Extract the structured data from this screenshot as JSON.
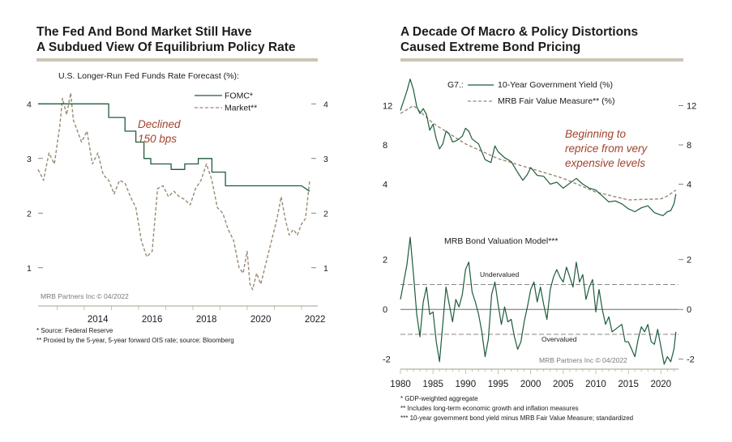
{
  "left_panel": {
    "title_line1": "The Fed And Bond Market Still Have",
    "title_line2": "A Subdued View Of Equilibrium Policy Rate",
    "subtitle": "U.S. Longer-Run Fed Funds Rate Forecast (%):",
    "watermark": "MRB Partners Inc © 04/2022",
    "annotation": [
      "Declined",
      "150 bps"
    ],
    "footnotes": [
      "*  Source: Federal Reserve",
      "** Proxied by the 5-year, 5-year forward OIS rate; source: Bloomberg"
    ]
  },
  "right_panel": {
    "title_line1": "A Decade Of Macro & Policy Distortions",
    "title_line2": "Caused Extreme Bond Pricing",
    "legend_prefix": "G7.:",
    "annotation": [
      "Beginning to",
      "reprice from very",
      "expensive levels"
    ],
    "bottom_subtitle": "MRB Bond Valuation Model***",
    "undervalued_label": "Undervalued",
    "overvalued_label": "Overvalued",
    "watermark": "MRB Partners Inc © 04/2022",
    "footnotes": [
      "*   GDP-weighted aggregate",
      "**  Includes long-term economic growth and inflation measures",
      "*** 10-year government bond yield minus MRB Fair Value Measure; standardized"
    ]
  },
  "colors": {
    "green": "#1f5c3a",
    "tan": "#9a8a72",
    "red": "#a0432d",
    "rule": "#cdc5b4",
    "axis": "#b9b1a2"
  },
  "chart_data": [
    {
      "type": "line",
      "title": "U.S. Longer-Run Fed Funds Rate Forecast (%):",
      "x_ticks": [
        "2014",
        "2016",
        "2018",
        "2020",
        "2022"
      ],
      "y_ticks": [
        "1",
        "2",
        "3",
        "4"
      ],
      "xlim": [
        2012.3,
        2022.6
      ],
      "ylim": [
        0.3,
        4.3
      ],
      "series": [
        {
          "name": "FOMC*",
          "style": "solid",
          "color": "#1f5c3a",
          "x": [
            2012.3,
            2014.9,
            2014.9,
            2015.5,
            2015.5,
            2015.9,
            2015.9,
            2016.2,
            2016.2,
            2016.45,
            2016.45,
            2016.7,
            2016.7,
            2017.2,
            2017.2,
            2017.7,
            2017.7,
            2018.2,
            2018.2,
            2018.7,
            2018.7,
            2019.2,
            2019.2,
            2022.0,
            2022.0,
            2022.3
          ],
          "y": [
            4.0,
            4.0,
            3.75,
            3.75,
            3.5,
            3.5,
            3.3,
            3.3,
            3.0,
            3.0,
            2.9,
            2.9,
            2.9,
            2.9,
            2.8,
            2.8,
            2.9,
            2.9,
            3.0,
            3.0,
            2.75,
            2.75,
            2.5,
            2.5,
            2.5,
            2.4
          ]
        },
        {
          "name": "Market**",
          "style": "dashed",
          "color": "#9a8a72",
          "x": [
            2012.3,
            2012.5,
            2012.7,
            2012.9,
            2013.1,
            2013.2,
            2013.35,
            2013.5,
            2013.6,
            2013.75,
            2013.9,
            2014.1,
            2014.3,
            2014.5,
            2014.7,
            2014.9,
            2015.1,
            2015.3,
            2015.5,
            2015.7,
            2015.9,
            2016.1,
            2016.3,
            2016.5,
            2016.7,
            2016.9,
            2017.1,
            2017.3,
            2017.5,
            2017.7,
            2017.9,
            2018.1,
            2018.3,
            2018.5,
            2018.7,
            2018.9,
            2019.1,
            2019.3,
            2019.5,
            2019.7,
            2019.85,
            2020.0,
            2020.1,
            2020.2,
            2020.35,
            2020.5,
            2020.65,
            2020.8,
            2020.95,
            2021.1,
            2021.25,
            2021.4,
            2021.55,
            2021.7,
            2021.85,
            2022.0,
            2022.15,
            2022.3
          ],
          "y": [
            2.8,
            2.6,
            3.1,
            2.9,
            3.6,
            4.1,
            3.8,
            4.2,
            3.7,
            3.5,
            3.3,
            3.5,
            2.9,
            3.1,
            2.7,
            2.6,
            2.35,
            2.6,
            2.55,
            2.3,
            2.1,
            1.5,
            1.2,
            1.3,
            2.45,
            2.5,
            2.3,
            2.4,
            2.3,
            2.25,
            2.15,
            2.45,
            2.6,
            2.9,
            2.6,
            2.1,
            2.0,
            1.7,
            1.5,
            1.0,
            0.9,
            1.3,
            0.7,
            0.6,
            0.9,
            0.7,
            1.0,
            1.3,
            1.6,
            1.9,
            2.3,
            1.9,
            1.6,
            1.7,
            1.6,
            1.8,
            1.9,
            2.6
          ]
        }
      ],
      "annotation": "Declined 150 bps",
      "watermark": "MRB Partners Inc © 04/2022"
    },
    {
      "type": "line",
      "title": "G7.:",
      "x_ticks": [
        "1980",
        "1985",
        "1990",
        "1995",
        "2000",
        "2005",
        "2010",
        "2015",
        "2020"
      ],
      "y_ticks": [
        "4",
        "8",
        "12"
      ],
      "xlim": [
        1980,
        2022.7
      ],
      "ylim": [
        0.5,
        15.5
      ],
      "series": [
        {
          "name": "10-Year Government Yield (%)",
          "style": "solid",
          "color": "#1f5c3a",
          "x": [
            1980.0,
            1980.5,
            1981.0,
            1981.5,
            1982.0,
            1982.5,
            1983.0,
            1983.5,
            1984.0,
            1984.5,
            1985.0,
            1985.5,
            1986.0,
            1986.5,
            1987.0,
            1987.5,
            1988.0,
            1988.5,
            1989.0,
            1989.5,
            1990.0,
            1990.5,
            1991.0,
            1992.0,
            1993.0,
            1993.9,
            1994.5,
            1995.0,
            1996.0,
            1997.0,
            1998.0,
            1998.8,
            1999.5,
            2000.0,
            2001.0,
            2002.0,
            2003.0,
            2004.0,
            2005.0,
            2006.0,
            2007.0,
            2008.0,
            2009.0,
            2010.0,
            2011.0,
            2012.0,
            2013.0,
            2014.0,
            2015.0,
            2016.0,
            2017.0,
            2018.0,
            2019.0,
            2019.8,
            2020.3,
            2021.0,
            2021.5,
            2022.0,
            2022.3
          ],
          "y": [
            11.5,
            12.5,
            13.5,
            14.7,
            13.6,
            11.9,
            11.2,
            11.7,
            11.1,
            9.5,
            10.1,
            8.6,
            7.6,
            8.1,
            9.4,
            9.1,
            8.3,
            8.4,
            8.6,
            8.9,
            9.7,
            9.4,
            8.6,
            8.1,
            6.5,
            6.2,
            7.9,
            7.3,
            6.7,
            6.3,
            5.2,
            4.4,
            5.0,
            5.7,
            4.9,
            4.8,
            4.0,
            4.2,
            3.6,
            4.1,
            4.6,
            4.0,
            3.6,
            3.4,
            2.8,
            2.2,
            2.3,
            2.0,
            1.5,
            1.2,
            1.6,
            1.8,
            1.1,
            0.9,
            0.8,
            1.2,
            1.3,
            2.0,
            3.0
          ]
        },
        {
          "name": "MRB Fair Value Measure** (%)",
          "style": "dashed",
          "color": "#9a8a72",
          "x": [
            1980,
            1982,
            1985,
            1990,
            1995,
            2000,
            2005,
            2010,
            2015,
            2020,
            2021,
            2022.3
          ],
          "y": [
            11.2,
            12.0,
            10.2,
            8.1,
            6.6,
            5.6,
            4.6,
            3.2,
            2.4,
            2.5,
            2.8,
            3.4
          ]
        }
      ],
      "annotation": "Beginning to reprice from very expensive levels"
    },
    {
      "type": "line",
      "title": "MRB Bond Valuation Model***",
      "x_ticks": [
        "1980",
        "1985",
        "1990",
        "1995",
        "2000",
        "2005",
        "2010",
        "2015",
        "2020"
      ],
      "y_ticks": [
        "-2",
        "0",
        "2"
      ],
      "xlim": [
        1980,
        2022.7
      ],
      "ylim": [
        -2.4,
        3.0
      ],
      "reference_lines": [
        {
          "label": "Undervalued",
          "y": 1.0
        },
        {
          "label": "Overvalued",
          "y": -1.0
        }
      ],
      "series": [
        {
          "name": "MRB Bond Valuation Model***",
          "style": "solid",
          "color": "#1f5c3a",
          "x": [
            1980.0,
            1980.5,
            1981.0,
            1981.5,
            1982.0,
            1982.5,
            1983.0,
            1983.5,
            1984.0,
            1984.5,
            1985.0,
            1985.5,
            1986.0,
            1986.5,
            1987.0,
            1987.5,
            1988.0,
            1988.5,
            1989.0,
            1989.5,
            1990.0,
            1990.5,
            1991.0,
            1991.5,
            1992.0,
            1992.5,
            1993.0,
            1993.5,
            1994.0,
            1994.5,
            1995.0,
            1995.5,
            1996.0,
            1996.5,
            1997.0,
            1997.5,
            1998.0,
            1998.5,
            1999.0,
            1999.5,
            2000.0,
            2000.5,
            2001.0,
            2001.5,
            2002.0,
            2002.5,
            2003.0,
            2003.5,
            2004.0,
            2004.5,
            2005.0,
            2005.5,
            2006.0,
            2006.5,
            2007.0,
            2007.5,
            2008.0,
            2008.5,
            2009.0,
            2009.5,
            2010.0,
            2010.5,
            2011.0,
            2011.5,
            2012.0,
            2012.5,
            2013.0,
            2013.5,
            2014.0,
            2014.5,
            2015.0,
            2015.5,
            2016.0,
            2016.5,
            2017.0,
            2017.5,
            2018.0,
            2018.5,
            2019.0,
            2019.5,
            2020.0,
            2020.5,
            2021.0,
            2021.5,
            2022.0,
            2022.3
          ],
          "y": [
            0.4,
            1.1,
            1.8,
            2.9,
            1.4,
            -0.2,
            -1.1,
            0.3,
            0.9,
            -0.2,
            -0.1,
            -1.3,
            -2.1,
            -0.6,
            0.9,
            0.2,
            -0.5,
            0.4,
            0.1,
            0.6,
            1.6,
            1.9,
            0.7,
            0.3,
            -0.2,
            -0.9,
            -1.9,
            -1.2,
            0.6,
            1.1,
            0.2,
            -0.6,
            0.1,
            -0.5,
            -0.4,
            -1.1,
            -1.6,
            -1.3,
            -0.5,
            0.1,
            0.8,
            1.1,
            0.3,
            0.9,
            0.2,
            -0.4,
            0.8,
            1.3,
            1.6,
            1.3,
            1.1,
            1.7,
            1.3,
            0.9,
            1.9,
            1.1,
            1.4,
            0.4,
            0.9,
            1.2,
            -0.1,
            0.8,
            0.0,
            -0.6,
            -0.3,
            -0.9,
            -0.8,
            -0.7,
            -0.6,
            -1.3,
            -1.3,
            -1.6,
            -1.9,
            -1.2,
            -0.7,
            -0.9,
            -0.6,
            -1.3,
            -1.4,
            -0.8,
            -1.5,
            -2.2,
            -1.9,
            -2.1,
            -1.6,
            -0.9
          ]
        }
      ],
      "watermark": "MRB Partners Inc © 04/2022"
    }
  ]
}
